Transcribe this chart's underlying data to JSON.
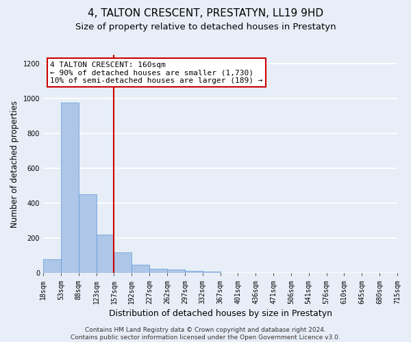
{
  "title": "4, TALTON CRESCENT, PRESTATYN, LL19 9HD",
  "subtitle": "Size of property relative to detached houses in Prestatyn",
  "xlabel": "Distribution of detached houses by size in Prestatyn",
  "ylabel": "Number of detached properties",
  "bar_values": [
    80,
    975,
    450,
    220,
    120,
    50,
    25,
    22,
    15,
    10,
    0,
    0,
    0,
    0,
    0,
    0,
    0,
    0,
    0,
    0
  ],
  "categories": [
    "18sqm",
    "53sqm",
    "88sqm",
    "123sqm",
    "157sqm",
    "192sqm",
    "227sqm",
    "262sqm",
    "297sqm",
    "332sqm",
    "367sqm",
    "401sqm",
    "436sqm",
    "471sqm",
    "506sqm",
    "541sqm",
    "576sqm",
    "610sqm",
    "645sqm",
    "680sqm",
    "715sqm"
  ],
  "bar_color": "#aec6e8",
  "bar_edge_color": "#5b9bd5",
  "background_color": "#e8eef7",
  "grid_color": "#ffffff",
  "red_line_x": 4.0,
  "annotation_text": "4 TALTON CRESCENT: 160sqm\n← 90% of detached houses are smaller (1,730)\n10% of semi-detached houses are larger (189) →",
  "annotation_box_color": "#ffffff",
  "annotation_box_edge": "#cc0000",
  "ylim": [
    0,
    1250
  ],
  "yticks": [
    0,
    200,
    400,
    600,
    800,
    1000,
    1200
  ],
  "footnote": "Contains HM Land Registry data © Crown copyright and database right 2024.\nContains public sector information licensed under the Open Government Licence v3.0.",
  "title_fontsize": 11,
  "subtitle_fontsize": 9.5,
  "xlabel_fontsize": 9,
  "ylabel_fontsize": 8.5,
  "tick_fontsize": 7,
  "annotation_fontsize": 8,
  "footnote_fontsize": 6.5
}
